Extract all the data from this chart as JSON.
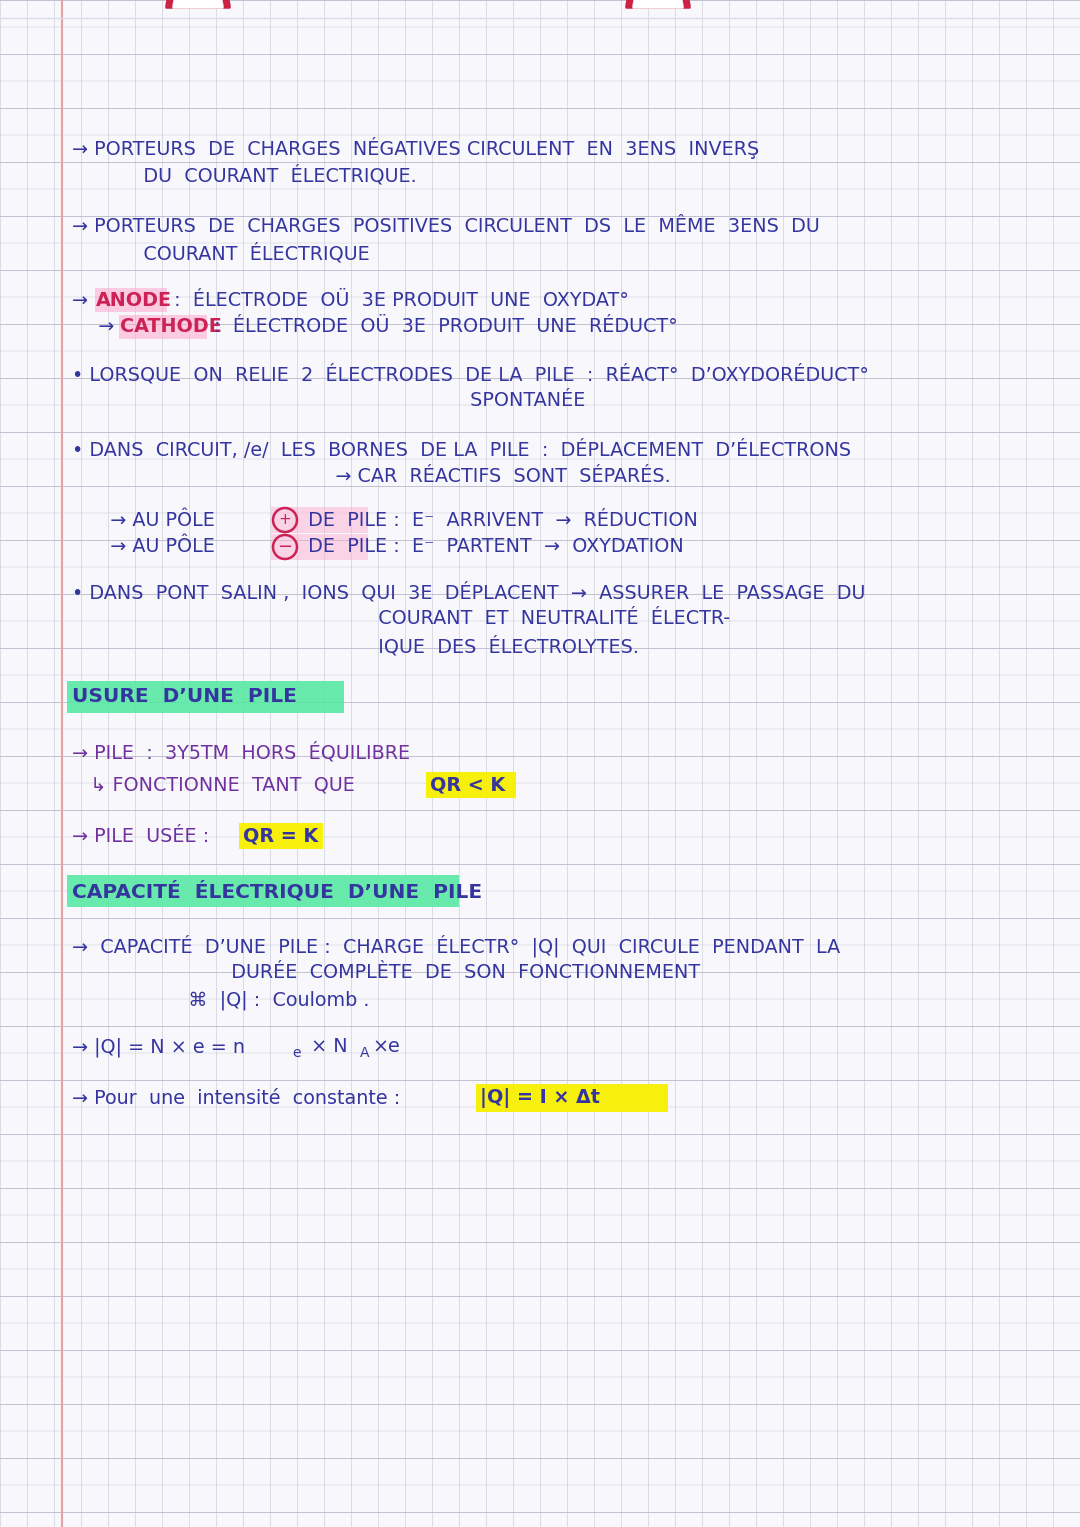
{
  "bg_color": "#f7f7fc",
  "grid_color": "#c5c5d5",
  "grid_color_h": "#b8b8cc",
  "text_color_main": "#3535a0",
  "text_color_pink": "#cc2255",
  "text_color_purple": "#7030a0",
  "highlight_green": "#50e8a0",
  "highlight_yellow": "#f8f000",
  "highlight_pink": "#ffaacc",
  "margin_color": "#e8a0a0",
  "line1": "→ PORTEURS  DE  CHARGES  NÉGATIVES CIRCULENT  EN  3ENS  INVERŞ",
  "line2": "   DU  COURANT  ÉLECTRIQUE.",
  "line3": "→ PORTEURS  DE  CHARGES  POSITIVES  CIRCULENT  DS  LE  MÊME  3ENS  DU",
  "line4": "   COURANT  ÉLECTRIQUE",
  "line5_a": "→ ",
  "line5_hl": "ANODE",
  "line5_b": " :  ÉLECTRODE  OÜ  3E PRODUIT  UNE  OXYDAT°",
  "line6_a": "  → ",
  "line6_hl": "CATHODE",
  "line6_b": " :  ÉLECTRODE  OÜ  3E  PRODUIT  UNE  RÉDUCT°",
  "line7": "• LORSQUE  ON  RELIE  2  ÉLECTRODES  DE LA  PILE  :  RÉACT°  D’OXYDORÉDUCT°",
  "line8": "                                                                 SPONTANÉE",
  "line9": "• DANS  CIRCUIT, /e/  LES  BORNES  DE LA  PILE  :  DÉPLACEMENT  D’ÉLECTRONS",
  "line10": "                                           → CAR  RÉACTIFS  SONT  SÉPARÉS.",
  "line11_a": "  → AU PÔLE",
  "line11_circle": "+",
  "line11_b": " DE  PILE :  E⁻  ARRIVENT  →  RÉDUCTION",
  "line12_a": "  → AU PÔLE",
  "line12_circle": "−",
  "line12_b": " DE  PILE :  E⁻  PARTENT  →  OXYDATION",
  "line13": "• DANS  PONT  SALIN ,  IONS  QUI  3E  DÉPLACENT  →  ASSURER  LE  PASSAGE  DU",
  "line14": "                                                  COURANT  ET  NEUTRALITÉ  ÉLECTR-",
  "line15": "                                                  IQUE  DES  ÉLECTROLYTES.",
  "sec1": "USURE  D’UNE  PILE",
  "line16": "→ PILE  :  3Y5TM  HORS  ÉQUILIBRE",
  "line17a": "   ↳ FONCTIONNE  TANT  QUE  ",
  "line17b": "QR < K",
  "line18a": "→ PILE  USÉE :  ",
  "line18b": "QR = K",
  "sec2": "CAPACITÉ  ÉLECTRIQUE  D’UNE  PILE",
  "line19": "→  CAPACITÉ  D’UNE  PILE :  CHARGE  ÉLECTR°  |Q|  QUI  CIRCULE  PENDANT  LA",
  "line20": "                          DURÉE  COMPLÈTE  DE  SON  FONCTIONNEMENT",
  "line21": "                   ⌘  |Q| :  Coulomb .",
  "line22": "→ |Q| = N × e = ne × NA×e",
  "line23a": "→ Pour  une  intensité  constante :  ",
  "line23b": "|Q| = I × Δt"
}
